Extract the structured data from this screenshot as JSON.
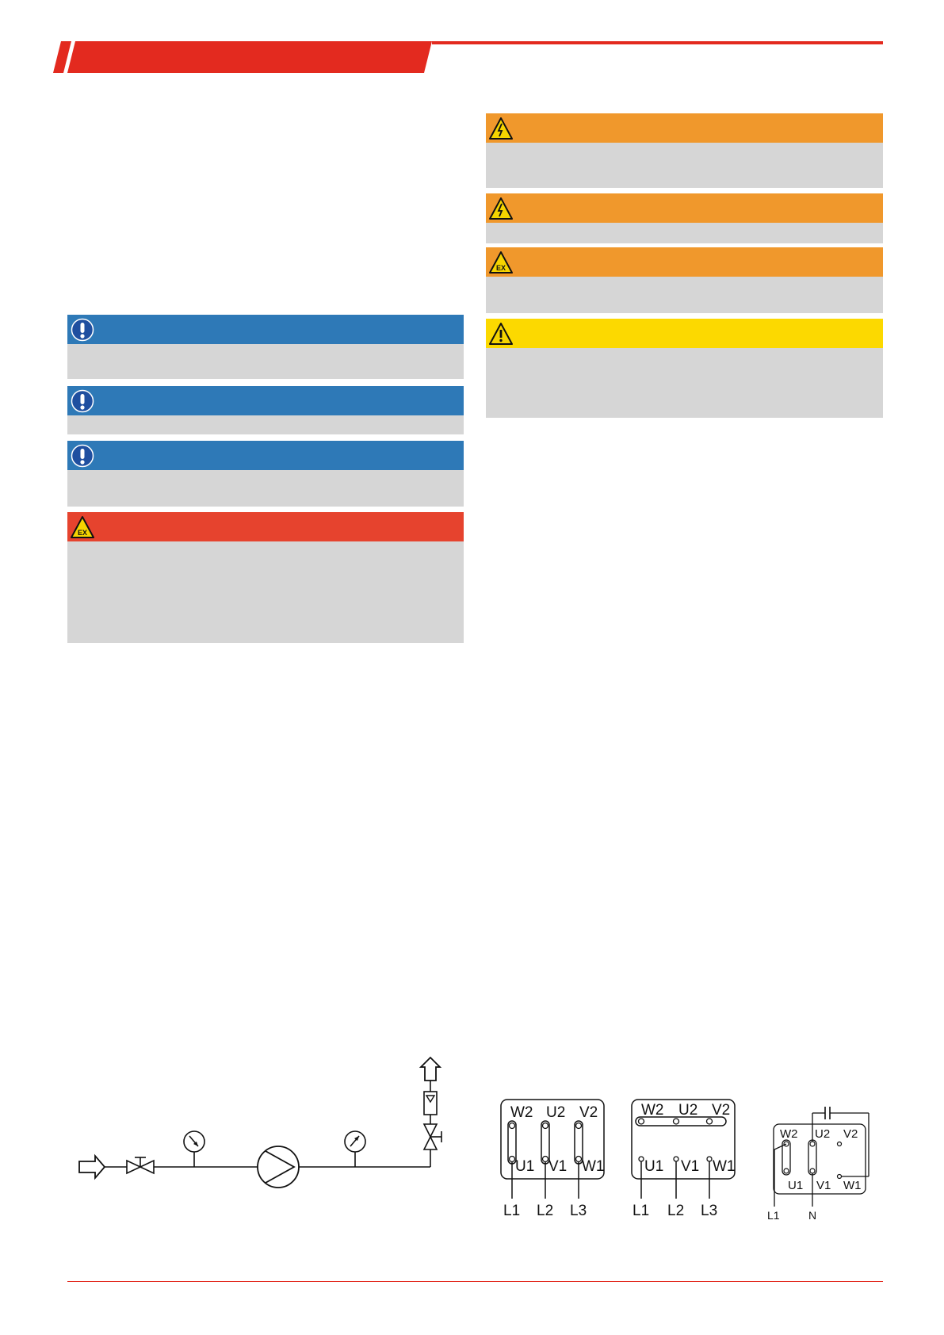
{
  "header": {
    "accent_color": "#e32a1f"
  },
  "notices_left": [
    {
      "type": "note",
      "icon": "info-exclamation-icon",
      "color": "#2e79b7"
    },
    {
      "type": "note",
      "icon": "info-exclamation-icon",
      "color": "#2e79b7"
    },
    {
      "type": "note",
      "icon": "info-exclamation-icon",
      "color": "#2e79b7"
    },
    {
      "type": "danger",
      "icon": "explosion-hazard-icon",
      "color": "#e6432e"
    }
  ],
  "notices_right": [
    {
      "type": "warning",
      "icon": "electric-hazard-icon",
      "color": "#f0982c"
    },
    {
      "type": "warning",
      "icon": "electric-hazard-icon",
      "color": "#f0982c"
    },
    {
      "type": "warning",
      "icon": "explosion-hazard-icon",
      "color": "#f0982c"
    },
    {
      "type": "caution",
      "icon": "general-warning-icon",
      "color": "#fcd900"
    }
  ],
  "wiring": {
    "star": {
      "top_terminals": [
        "W2",
        "U2",
        "V2"
      ],
      "bottom_terminals": [
        "U1",
        "V1",
        "W1"
      ],
      "lines": [
        "L1",
        "L2",
        "L3"
      ]
    },
    "delta": {
      "top_terminals": [
        "W2",
        "U2",
        "V2"
      ],
      "bottom_terminals": [
        "U1",
        "V1",
        "W1"
      ],
      "lines": [
        "L1",
        "L2",
        "L3"
      ]
    },
    "single_phase": {
      "top_terminals": [
        "W2",
        "U2",
        "V2"
      ],
      "bottom_terminals": [
        "U1",
        "V1",
        "W1"
      ],
      "lines": [
        "L1",
        "N"
      ]
    }
  }
}
